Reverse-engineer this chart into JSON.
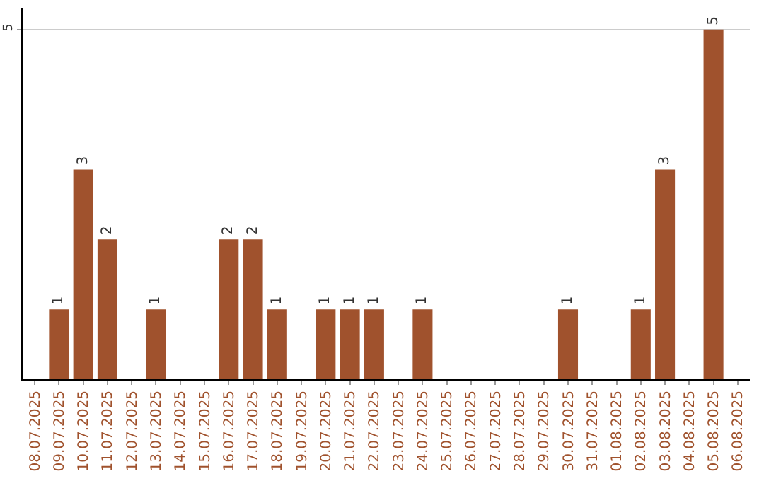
{
  "chart_data": {
    "type": "bar",
    "categories": [
      "08.07.2025",
      "09.07.2025",
      "10.07.2025",
      "11.07.2025",
      "12.07.2025",
      "13.07.2025",
      "14.07.2025",
      "15.07.2025",
      "16.07.2025",
      "17.07.2025",
      "18.07.2025",
      "19.07.2025",
      "20.07.2025",
      "21.07.2025",
      "22.07.2025",
      "23.07.2025",
      "24.07.2025",
      "25.07.2025",
      "26.07.2025",
      "27.07.2025",
      "28.07.2025",
      "29.07.2025",
      "30.07.2025",
      "31.07.2025",
      "01.08.2025",
      "02.08.2025",
      "03.08.2025",
      "04.08.2025",
      "05.08.2025",
      "06.08.2025"
    ],
    "values": [
      0,
      1,
      3,
      2,
      0,
      1,
      0,
      0,
      2,
      2,
      1,
      0,
      1,
      1,
      1,
      0,
      1,
      0,
      0,
      0,
      0,
      0,
      1,
      0,
      0,
      1,
      3,
      0,
      5,
      0
    ],
    "value_labels": [
      null,
      "1",
      "3",
      "2",
      null,
      "1",
      null,
      null,
      "2",
      "2",
      "1",
      null,
      "1",
      "1",
      "1",
      null,
      "1",
      null,
      null,
      null,
      null,
      null,
      "1",
      null,
      null,
      "1",
      "3",
      null,
      "5",
      null
    ],
    "color": "#a0522d",
    "ylim": [
      0,
      5.3
    ],
    "yticks": [
      5
    ],
    "grid": "y"
  }
}
